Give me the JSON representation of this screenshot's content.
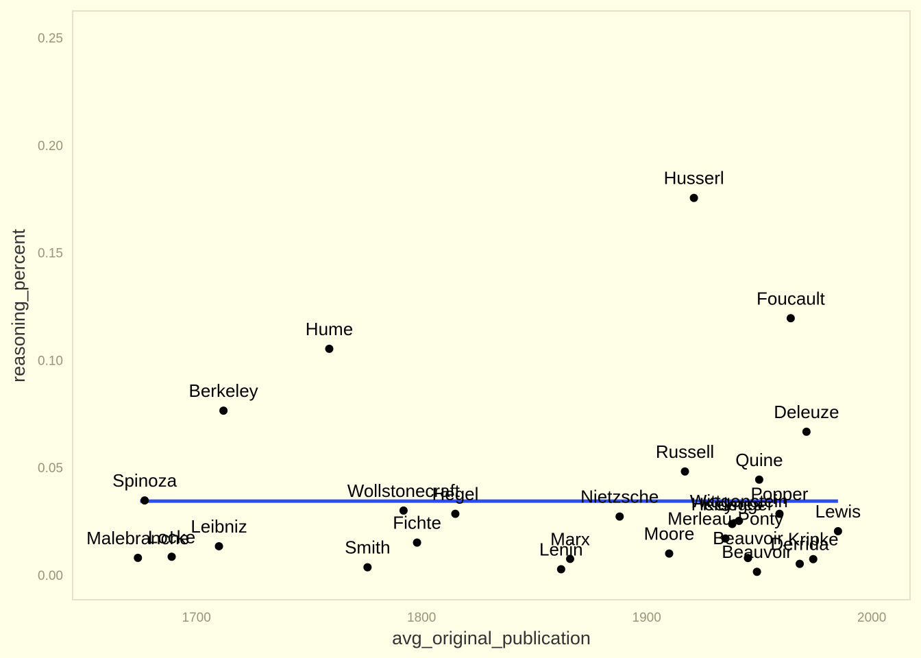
{
  "chart_data": {
    "type": "scatter",
    "title": "",
    "xlabel": "avg_original_publication",
    "ylabel": "reasoning_percent",
    "xlim": [
      1645,
      2017
    ],
    "ylim": [
      -0.0115,
      0.2625
    ],
    "x_ticks": [
      1700,
      1800,
      1900,
      2000
    ],
    "y_ticks": [
      0.0,
      0.05,
      0.1,
      0.15,
      0.2,
      0.25
    ],
    "x_tick_labels": [
      "1700",
      "1800",
      "1900",
      "2000"
    ],
    "y_tick_labels": [
      "0.00",
      "0.05",
      "0.10",
      "0.15",
      "0.20",
      "0.25"
    ],
    "grid": false,
    "background_color": "#fffee6",
    "panel_border_color": "#e8e0c4",
    "point_color": "#000000",
    "trend_color": "#2e4cf5",
    "trend_line": {
      "x": [
        1675,
        1985
      ],
      "y": [
        0.0344,
        0.0344
      ]
    },
    "points": [
      {
        "label": "Malebranche",
        "x": 1674,
        "y": 0.008
      },
      {
        "label": "Spinoza",
        "x": 1677,
        "y": 0.0347
      },
      {
        "label": "Locke",
        "x": 1689,
        "y": 0.0085
      },
      {
        "label": "Leibniz",
        "x": 1710,
        "y": 0.0134
      },
      {
        "label": "Berkeley",
        "x": 1712,
        "y": 0.0765
      },
      {
        "label": "Hume",
        "x": 1759,
        "y": 0.1053
      },
      {
        "label": "Smith",
        "x": 1776,
        "y": 0.0036
      },
      {
        "label": "Wollstonecraft",
        "x": 1792,
        "y": 0.03
      },
      {
        "label": "Fichte",
        "x": 1798,
        "y": 0.0151
      },
      {
        "label": "Hegel",
        "x": 1815,
        "y": 0.0285
      },
      {
        "label": "Lenin",
        "x": 1862,
        "y": 0.0027
      },
      {
        "label": "Marx",
        "x": 1866,
        "y": 0.0075
      },
      {
        "label": "Nietzsche",
        "x": 1888,
        "y": 0.0272
      },
      {
        "label": "Moore",
        "x": 1910,
        "y": 0.01
      },
      {
        "label": "Russell",
        "x": 1917,
        "y": 0.0482
      },
      {
        "label": "Husserl",
        "x": 1921,
        "y": 0.1755
      },
      {
        "label": "Merleau-Ponty",
        "x": 1935,
        "y": 0.017
      },
      {
        "label": "Keynes",
        "x": 1938,
        "y": 0.0238
      },
      {
        "label": "Wittgenstein",
        "x": 1941,
        "y": 0.0252
      },
      {
        "label": "Heidegger",
        "x": 1938,
        "y": 0.0238
      },
      {
        "label": "Beauvoir",
        "x": 1945,
        "y": 0.0079
      },
      {
        "label": "Quine",
        "x": 1950,
        "y": 0.0444
      },
      {
        "label": "Beauvoir",
        "x": 1949,
        "y": 0.0015
      },
      {
        "label": "Popper",
        "x": 1959,
        "y": 0.0285
      },
      {
        "label": "Foucault",
        "x": 1964,
        "y": 0.1195
      },
      {
        "label": "Derrida",
        "x": 1968,
        "y": 0.0052
      },
      {
        "label": "Deleuze",
        "x": 1971,
        "y": 0.0667
      },
      {
        "label": "Kripke",
        "x": 1974,
        "y": 0.0074
      },
      {
        "label": "Lewis",
        "x": 1985,
        "y": 0.0204
      }
    ]
  }
}
